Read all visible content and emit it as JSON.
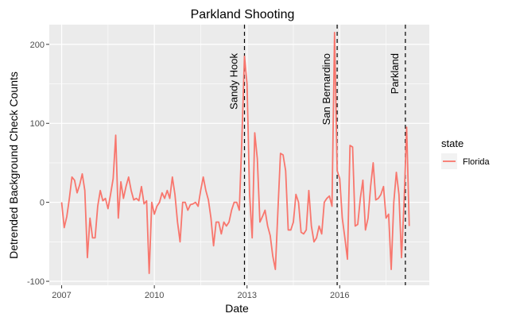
{
  "chart_data": {
    "type": "line",
    "title": "Parkland Shooting",
    "xlabel": "Date",
    "ylabel": "Detrended Background Check Counts",
    "xlim": [
      2006.6,
      2018.9
    ],
    "ylim": [
      -105,
      225
    ],
    "x_ticks": [
      {
        "value": 2007,
        "label": "2007"
      },
      {
        "value": 2010,
        "label": "2010"
      },
      {
        "value": 2013,
        "label": "2013"
      },
      {
        "value": 2016,
        "label": "2016"
      }
    ],
    "y_ticks": [
      {
        "value": -100,
        "label": "-100"
      },
      {
        "value": 0,
        "label": "0"
      },
      {
        "value": 100,
        "label": "100"
      },
      {
        "value": 200,
        "label": "200"
      }
    ],
    "legend": {
      "title": "state",
      "position": "right"
    },
    "grid": true,
    "series": [
      {
        "name": "Florida",
        "color": "#F8766D",
        "x": [
          2007.0,
          2007.083,
          2007.167,
          2007.25,
          2007.333,
          2007.417,
          2007.5,
          2007.583,
          2007.667,
          2007.75,
          2007.833,
          2007.917,
          2008.0,
          2008.083,
          2008.167,
          2008.25,
          2008.333,
          2008.417,
          2008.5,
          2008.583,
          2008.667,
          2008.75,
          2008.833,
          2008.917,
          2009.0,
          2009.083,
          2009.167,
          2009.25,
          2009.333,
          2009.417,
          2009.5,
          2009.583,
          2009.667,
          2009.75,
          2009.833,
          2009.917,
          2010.0,
          2010.083,
          2010.167,
          2010.25,
          2010.333,
          2010.417,
          2010.5,
          2010.583,
          2010.667,
          2010.75,
          2010.833,
          2010.917,
          2011.0,
          2011.083,
          2011.167,
          2011.25,
          2011.333,
          2011.417,
          2011.5,
          2011.583,
          2011.667,
          2011.75,
          2011.833,
          2011.917,
          2012.0,
          2012.083,
          2012.167,
          2012.25,
          2012.333,
          2012.417,
          2012.5,
          2012.583,
          2012.667,
          2012.75,
          2012.833,
          2012.917,
          2013.0,
          2013.083,
          2013.167,
          2013.25,
          2013.333,
          2013.417,
          2013.5,
          2013.583,
          2013.667,
          2013.75,
          2013.833,
          2013.917,
          2014.0,
          2014.083,
          2014.167,
          2014.25,
          2014.333,
          2014.417,
          2014.5,
          2014.583,
          2014.667,
          2014.75,
          2014.833,
          2014.917,
          2015.0,
          2015.083,
          2015.167,
          2015.25,
          2015.333,
          2015.417,
          2015.5,
          2015.583,
          2015.667,
          2015.75,
          2015.833,
          2015.917,
          2016.0,
          2016.083,
          2016.167,
          2016.25,
          2016.333,
          2016.417,
          2016.5,
          2016.583,
          2016.667,
          2016.75,
          2016.833,
          2016.917,
          2017.0,
          2017.083,
          2017.167,
          2017.25,
          2017.333,
          2017.417,
          2017.5,
          2017.583,
          2017.667,
          2017.75,
          2017.833,
          2017.917,
          2018.0,
          2018.083,
          2018.167,
          2018.25
        ],
        "values": [
          0,
          -32,
          -18,
          5,
          32,
          28,
          12,
          22,
          36,
          15,
          -70,
          -20,
          -45,
          -45,
          -5,
          15,
          2,
          5,
          -8,
          10,
          30,
          85,
          -20,
          26,
          5,
          20,
          32,
          15,
          3,
          5,
          2,
          20,
          -2,
          2,
          -90,
          0,
          -15,
          -5,
          0,
          12,
          5,
          15,
          5,
          32,
          10,
          -25,
          -50,
          0,
          0,
          -10,
          -3,
          -2,
          0,
          -5,
          15,
          32,
          15,
          3,
          -20,
          -55,
          -25,
          -25,
          -40,
          -25,
          -30,
          -25,
          -10,
          0,
          0,
          -10,
          80,
          185,
          150,
          10,
          -45,
          88,
          55,
          -25,
          -18,
          -10,
          -30,
          -42,
          -68,
          -85,
          -10,
          62,
          60,
          40,
          -35,
          -35,
          -25,
          10,
          0,
          -38,
          -40,
          -35,
          15,
          -30,
          -50,
          -45,
          -30,
          -40,
          0,
          5,
          8,
          -5,
          215,
          40,
          30,
          -20,
          -45,
          -72,
          72,
          70,
          -30,
          -28,
          5,
          28,
          -35,
          -20,
          20,
          50,
          3,
          5,
          10,
          20,
          -20,
          -15,
          -85,
          0,
          38,
          10,
          -70,
          0,
          95,
          -30
        ]
      }
    ],
    "annotations": [
      {
        "x": 2012.917,
        "label": "Sandy Hook"
      },
      {
        "x": 2015.917,
        "label": "San Bernardino"
      },
      {
        "x": 2018.125,
        "label": "Parkland"
      }
    ]
  }
}
